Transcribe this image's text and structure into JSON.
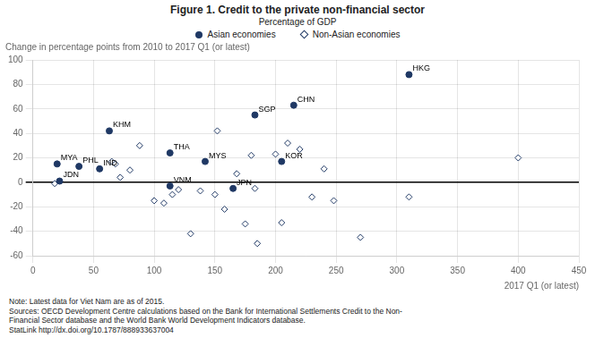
{
  "chart_data": {
    "type": "scatter",
    "title": "Figure 1. Credit to the private non-financial sector",
    "subtitle": "Percentage of GDP",
    "ylabel": "Change in percentage points from 2010 to 2017 Q1 (or latest)",
    "xlabel": "2017 Q1 (or latest)",
    "xlim": [
      0,
      450
    ],
    "ylim": [
      -60,
      100
    ],
    "xticks": [
      0,
      50,
      100,
      150,
      200,
      250,
      300,
      350,
      400,
      450
    ],
    "yticks": [
      -60,
      -40,
      -20,
      0,
      20,
      40,
      60,
      80,
      100
    ],
    "grid": true,
    "legend": "top",
    "series": [
      {
        "name": "Asian economies",
        "color": "#1f3864",
        "marker": "circle",
        "labels": [
          "MYA",
          "JDN",
          "PHL",
          "IND",
          "KHM",
          "THA",
          "VNM",
          "MYS",
          "JPN",
          "SGP",
          "KOR",
          "CHN",
          "HKG"
        ],
        "x": [
          20,
          22,
          38,
          55,
          63,
          113,
          113,
          142,
          165,
          183,
          205,
          215,
          310
        ],
        "values": [
          15,
          1,
          13,
          11,
          42,
          24,
          -3,
          17,
          -5,
          55,
          17,
          63,
          88
        ]
      },
      {
        "name": "Non-Asian economies",
        "color": "#1f3864",
        "marker": "diamond",
        "x": [
          18,
          65,
          68,
          72,
          80,
          88,
          100,
          108,
          115,
          120,
          130,
          138,
          150,
          152,
          158,
          168,
          175,
          180,
          183,
          185,
          200,
          205,
          210,
          220,
          230,
          240,
          248,
          270,
          310,
          400
        ],
        "values": [
          -1,
          17,
          15,
          4,
          10,
          30,
          -15,
          -17,
          -10,
          -6,
          -42,
          -7,
          -10,
          42,
          -22,
          7,
          -34,
          22,
          -5,
          -50,
          23,
          -33,
          32,
          27,
          -12,
          11,
          -15,
          -45,
          -12,
          20
        ]
      }
    ],
    "annotations": [
      "Note: Latest data for Viet Nam are as of 2015.",
      "Sources: OECD Development Centre calculations based on the Bank for International Settlements Credit to the Non-",
      "Financial Sector database and the World Bank World Development Indicators database.",
      "StatLink  http://dx.doi.org/10.1787/888933637004"
    ]
  }
}
